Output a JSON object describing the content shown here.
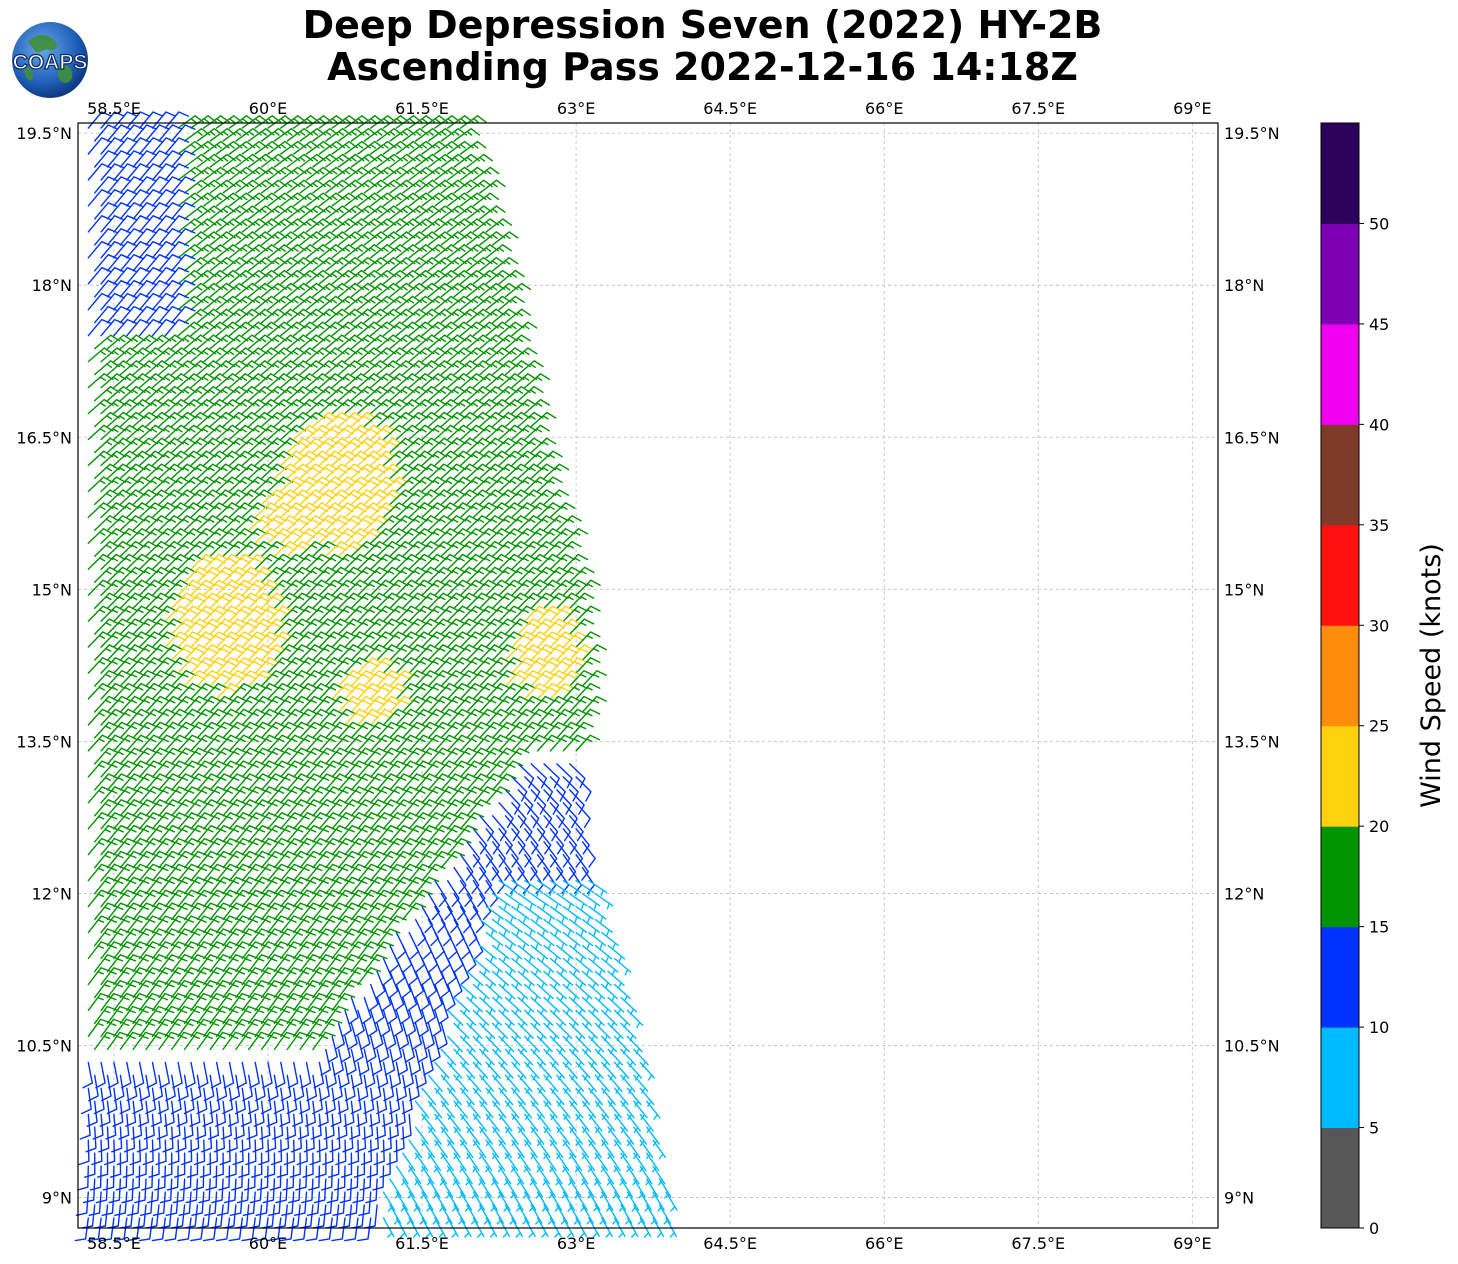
{
  "title": {
    "line1": "Deep Depression Seven (2022) HY-2B",
    "line2": "Ascending Pass 2022-12-16 14:18Z"
  },
  "logo": {
    "text": "COAPS",
    "icon": "globe-icon"
  },
  "map": {
    "lon_range": [
      58.15,
      69.25
    ],
    "lat_range": [
      8.7,
      19.6
    ],
    "lon_ticks": [
      "58.5°E",
      "60°E",
      "61.5°E",
      "63°E",
      "64.5°E",
      "66°E",
      "67.5°E",
      "69°E"
    ],
    "lon_tick_values": [
      58.5,
      60,
      61.5,
      63,
      64.5,
      66,
      67.5,
      69
    ],
    "lat_ticks": [
      "19.5°N",
      "18°N",
      "16.5°N",
      "15°N",
      "13.5°N",
      "12°N",
      "10.5°N",
      "9°N"
    ],
    "lat_tick_values": [
      19.5,
      18,
      16.5,
      15,
      13.5,
      12,
      10.5,
      9
    ],
    "gridlines": true,
    "swath": {
      "description_free": true,
      "lat_top": 19.55,
      "lat_bottom": 8.75,
      "east_edge_lon": [
        [
          19.55,
          61.9
        ],
        [
          18,
          62.3
        ],
        [
          16.5,
          62.6
        ],
        [
          15,
          63
        ],
        [
          14,
          63.1
        ],
        [
          12.8,
          63
        ],
        [
          12,
          63.2
        ],
        [
          11,
          63.5
        ],
        [
          10,
          63.7
        ],
        [
          9,
          63.9
        ],
        [
          8.75,
          63.95
        ]
      ],
      "west_edge_lon": 58.2
    }
  },
  "chart_data": {
    "type": "map-wind-barbs",
    "colorbar": {
      "label": "Wind Speed (knots)",
      "ticks": [
        "0",
        "5",
        "10",
        "15",
        "20",
        "25",
        "30",
        "35",
        "40",
        "45",
        "50"
      ],
      "bins": [
        {
          "min": 0,
          "max": 5,
          "color": "#575757"
        },
        {
          "min": 5,
          "max": 10,
          "color": "#00bbff"
        },
        {
          "min": 10,
          "max": 15,
          "color": "#0033ff"
        },
        {
          "min": 15,
          "max": 20,
          "color": "#009400"
        },
        {
          "min": 20,
          "max": 25,
          "color": "#ffd20f"
        },
        {
          "min": 25,
          "max": 30,
          "color": "#ff8c0a"
        },
        {
          "min": 30,
          "max": 35,
          "color": "#ff1010"
        },
        {
          "min": 35,
          "max": 40,
          "color": "#803a28"
        },
        {
          "min": 40,
          "max": 45,
          "color": "#f000f0"
        },
        {
          "min": 45,
          "max": 50,
          "color": "#7d00b4"
        },
        {
          "min": 50,
          "max": 55,
          "color": "#2d005a"
        }
      ]
    },
    "wind_regions": [
      {
        "name": "light-southeast",
        "speed_kt": "5-10",
        "color": "#00bbff",
        "lat": [
          8.75,
          12
        ],
        "lon": [
          61,
          64
        ]
      },
      {
        "name": "moderate-south",
        "speed_kt": "10-15",
        "color": "#0033ff",
        "lat": [
          8.75,
          13.5
        ],
        "lon": [
          58.2,
          63
        ]
      },
      {
        "name": "moderate-northwest",
        "speed_kt": "10-15",
        "color": "#0033ff",
        "lat": [
          17.5,
          19.55
        ],
        "lon": [
          58.2,
          59
        ]
      },
      {
        "name": "fresh-northeast",
        "speed_kt": "15-20",
        "color": "#009400",
        "lat": [
          10.3,
          19.55
        ],
        "lon": [
          58.2,
          63
        ]
      },
      {
        "name": "strong-core",
        "speed_kt": "20-25",
        "color": "#ffd20f",
        "lat": [
          13.7,
          16.7
        ],
        "lon": [
          59.2,
          63
        ]
      }
    ]
  }
}
